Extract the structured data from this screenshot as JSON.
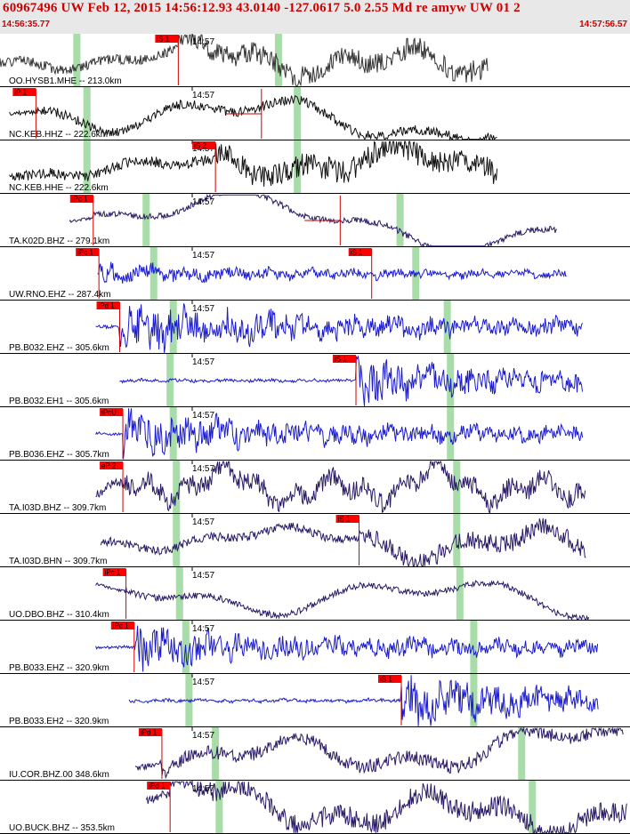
{
  "header": {
    "title": "60967496 UW Feb 12, 2015 14:56:12.93   43.0140 -127.0617  5.0 2.55 Md re amyw UW 01   2",
    "start_time": "14:56:35.77",
    "end_time": "14:57:56.57"
  },
  "chart_data": {
    "type": "seismogram",
    "minute_mark": "14:57",
    "colors": {
      "background": "#ffffff",
      "pick_flag": "#ff0000",
      "pick_line": "#cc0000",
      "green_band": "#a8dca8",
      "divider": "#000000"
    },
    "traces": [
      {
        "label": "OO.HYSB1.MHE -- 213.0km",
        "color": "#333333",
        "start": 0.0,
        "end": 0.775,
        "amp": 0.45,
        "freq": 0.55,
        "noise": 0.45,
        "seed": 1,
        "picks": [
          {
            "label": "iS 1",
            "t": 0.283
          }
        ],
        "green": [
          0.122,
          0.442
        ]
      },
      {
        "label": "NC.KEB.HHZ -- 222.6km",
        "color": "#111111",
        "start": 0.015,
        "end": 0.79,
        "amp": 0.5,
        "freq": 0.35,
        "noise": 0.18,
        "seed": 2,
        "picks": [
          {
            "label": "iP 1",
            "t": 0.057
          },
          {
            "label": "",
            "t": 0.415
          }
        ],
        "green": [
          0.138,
          0.472
        ]
      },
      {
        "label": "NC.KEB.HHE -- 222.6km",
        "color": "#111111",
        "start": 0.015,
        "end": 0.79,
        "amp": 0.5,
        "freq": 0.5,
        "noise": 0.45,
        "seed": 3,
        "picks": [
          {
            "label": "iS 2",
            "t": 0.342
          }
        ],
        "green": [
          0.138,
          0.472
        ]
      },
      {
        "label": "TA.K02D.BHZ -- 279.1km",
        "color": "#2a1a66",
        "start": 0.11,
        "end": 0.885,
        "amp": 0.5,
        "freq": 0.3,
        "noise": 0.12,
        "seed": 4,
        "picks": [
          {
            "label": "iPc 1",
            "t": 0.148
          },
          {
            "label": "",
            "t": 0.54
          }
        ],
        "green": [
          0.232,
          0.635
        ]
      },
      {
        "label": "UW.RNO.EHZ -- 287.4km",
        "color": "#1c1ccc",
        "start": 0.155,
        "end": 0.9,
        "amp": 0.18,
        "freq": 3.0,
        "noise": 0.9,
        "seed": 5,
        "picks": [
          {
            "label": "iPc 1",
            "t": 0.157
          },
          {
            "label": "iS 1",
            "t": 0.59
          }
        ],
        "green": [
          0.244,
          0.66
        ]
      },
      {
        "label": "PB.B032.EHZ -- 305.6km",
        "color": "#1c1ccc",
        "start": 0.152,
        "end": 0.925,
        "amp": 0.4,
        "freq": 3.0,
        "noise": 0.95,
        "seed": 6,
        "picks": [
          {
            "label": "iPd 1",
            "t": 0.19
          }
        ],
        "green": [
          0.275,
          0.71
        ]
      },
      {
        "label": "PB.B032.EH1 -- 305.6km",
        "color": "#1c1ccc",
        "start": 0.19,
        "end": 0.925,
        "amp": 0.35,
        "freq": 3.0,
        "noise": 0.95,
        "seed": 7,
        "picks": [
          {
            "label": "iS 1",
            "t": 0.565
          }
        ],
        "green": [
          0.27,
          0.715
        ]
      },
      {
        "label": "PB.B036.EHZ -- 305.7km",
        "color": "#1c1ccc",
        "start": 0.152,
        "end": 0.925,
        "amp": 0.35,
        "freq": 3.0,
        "noise": 0.95,
        "seed": 8,
        "picks": [
          {
            "label": "iPcU",
            "t": 0.195
          }
        ],
        "green": [
          0.275,
          0.715
        ]
      },
      {
        "label": "TA.I03D.BHZ -- 309.7km",
        "color": "#2a1a66",
        "start": 0.152,
        "end": 0.93,
        "amp": 0.42,
        "freq": 1.2,
        "noise": 0.45,
        "seed": 9,
        "picks": [
          {
            "label": "eP 2",
            "t": 0.195
          }
        ],
        "green": [
          0.28,
          0.725
        ]
      },
      {
        "label": "TA.I03D.BHN -- 309.7km",
        "color": "#2a1a66",
        "start": 0.16,
        "end": 0.93,
        "amp": 0.5,
        "freq": 0.5,
        "noise": 0.35,
        "seed": 10,
        "picks": [
          {
            "label": "iS 1",
            "t": 0.57
          }
        ],
        "green": [
          0.28,
          0.725
        ]
      },
      {
        "label": "UO.DBO.BHZ -- 310.4km",
        "color": "#2a1a66",
        "start": 0.152,
        "end": 0.935,
        "amp": 0.5,
        "freq": 0.3,
        "noise": 0.12,
        "seed": 11,
        "picks": [
          {
            "label": "iPc 1",
            "t": 0.2
          }
        ],
        "green": [
          0.285,
          0.73
        ]
      },
      {
        "label": "PB.B033.EHZ -- 320.9km",
        "color": "#1c1ccc",
        "start": 0.152,
        "end": 0.95,
        "amp": 0.35,
        "freq": 3.0,
        "noise": 0.95,
        "seed": 12,
        "picks": [
          {
            "label": "iPc 1",
            "t": 0.213
          }
        ],
        "green": [
          0.295,
          0.752
        ]
      },
      {
        "label": "PB.B033.EH2 -- 320.9km",
        "color": "#1c1ccc",
        "start": 0.205,
        "end": 0.95,
        "amp": 0.38,
        "freq": 3.0,
        "noise": 0.95,
        "seed": 13,
        "picks": [
          {
            "label": "iS 1",
            "t": 0.637
          }
        ],
        "green": [
          0.3,
          0.752
        ]
      },
      {
        "label": "IU.COR.BHZ.00 348.6km",
        "color": "#2a1a66",
        "start": 0.215,
        "end": 0.99,
        "amp": 0.5,
        "freq": 0.4,
        "noise": 0.25,
        "seed": 14,
        "picks": [
          {
            "label": "iPd 1",
            "t": 0.257
          }
        ],
        "green": [
          0.342,
          0.828
        ]
      },
      {
        "label": "UO.BUCK.BHZ -- 353.5km",
        "color": "#2a1a66",
        "start": 0.232,
        "end": 0.995,
        "amp": 0.55,
        "freq": 0.5,
        "noise": 0.35,
        "seed": 15,
        "picks": [
          {
            "label": "iPd 1",
            "t": 0.27
          }
        ],
        "green": [
          0.348,
          0.845
        ]
      }
    ]
  }
}
